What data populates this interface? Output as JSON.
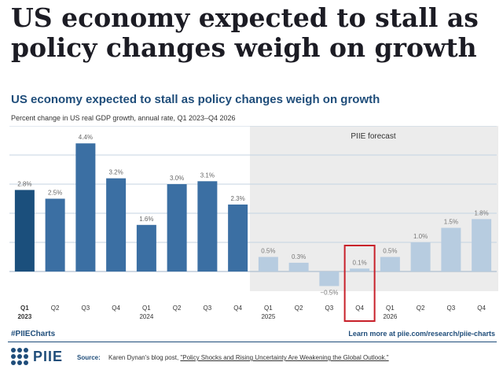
{
  "headline": "US economy expected to stall as policy changes weigh on growth",
  "chart_data": {
    "type": "bar",
    "title": "US economy expected to stall as policy changes weigh on growth",
    "subtitle": "Percent change in US real GDP growth, annual rate, Q1 2023–Q4 2026",
    "forecast_label": "PIIE forecast",
    "categories": [
      "Q1",
      "Q2",
      "Q3",
      "Q4",
      "Q1",
      "Q2",
      "Q3",
      "Q4",
      "Q1",
      "Q2",
      "Q3",
      "Q4",
      "Q1",
      "Q2",
      "Q3",
      "Q4"
    ],
    "years": [
      "2023",
      "",
      "",
      "",
      "2024",
      "",
      "",
      "",
      "2025",
      "",
      "",
      "",
      "2026",
      "",
      "",
      ""
    ],
    "values": [
      2.8,
      2.5,
      4.4,
      3.2,
      1.6,
      3.0,
      3.1,
      2.3,
      0.5,
      0.3,
      -0.5,
      0.1,
      0.5,
      1.0,
      1.5,
      1.8
    ],
    "value_labels": [
      "2.8%",
      "2.5%",
      "4.4%",
      "3.2%",
      "1.6%",
      "3.0%",
      "3.1%",
      "2.3%",
      "0.5%",
      "0.3%",
      "−0.5%",
      "0.1%",
      "0.5%",
      "1.0%",
      "1.5%",
      "1.8%"
    ],
    "forecast_start_index": 8,
    "highlight_index": 11,
    "ylim": [
      -1,
      5
    ],
    "grid": true,
    "colors": {
      "first_bar": "#1b4f7c",
      "actual": "#3b6fa3",
      "forecast": "#b7cce0",
      "forecast_bg": "#ececec",
      "highlight_box": "#c8202a",
      "grid": "#c5d3e2"
    }
  },
  "footer": {
    "hashtag": "#PIIECharts",
    "link": "Learn more at piie.com/research/piie-charts",
    "logo": "PIIE",
    "source_label": "Source:",
    "source_text": "Karen Dynan's blog post,",
    "source_link": "\"Policy Shocks and Rising Uncertainty Are Weakening the Global Outlook.\""
  }
}
